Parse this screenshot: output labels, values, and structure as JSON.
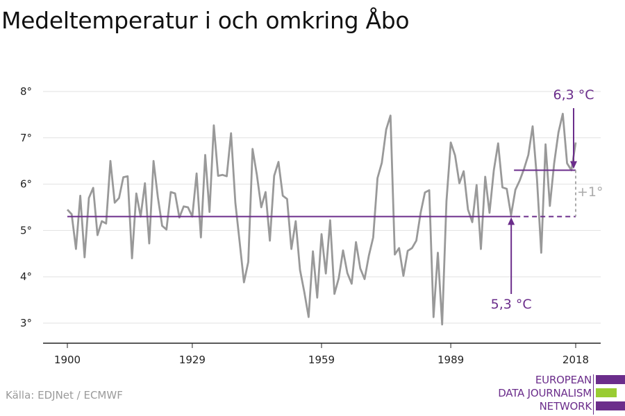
{
  "title": "Medeltemperatur i och omkring Åbo",
  "source": "Källa: EDJNet / ECMWF",
  "logo": {
    "lines": [
      "EUROPEAN",
      "DATA JOURNALISM",
      "NETWORK"
    ],
    "bar_colors": [
      "#6b2d8b",
      "#99cc33",
      "#6b2d8b"
    ]
  },
  "colors": {
    "series": "#999999",
    "accent": "#6b2d8b",
    "grid": "#e1e1e1",
    "diff": "#aaaaaa"
  },
  "chart_data": {
    "type": "line",
    "title": "Medeltemperatur i och omkring Åbo",
    "xlabel": "",
    "ylabel": "",
    "xlim": [
      1900,
      2018
    ],
    "ylim": [
      3,
      8
    ],
    "x_ticks": [
      1900,
      1929,
      1959,
      1989,
      2018
    ],
    "x_tick_labels": [
      "1900",
      "1929",
      "1959",
      "1989",
      "2018"
    ],
    "y_ticks": [
      3,
      4,
      5,
      6,
      7,
      8
    ],
    "y_tick_labels": [
      "3°",
      "4°",
      "5°",
      "6°",
      "7°",
      "8°"
    ],
    "grid": true,
    "series": [
      {
        "name": "",
        "x": [
          1900,
          1901,
          1902,
          1903,
          1904,
          1905,
          1906,
          1907,
          1908,
          1909,
          1910,
          1911,
          1912,
          1913,
          1914,
          1915,
          1916,
          1917,
          1918,
          1919,
          1920,
          1921,
          1922,
          1923,
          1924,
          1925,
          1926,
          1927,
          1928,
          1929,
          1930,
          1931,
          1932,
          1933,
          1934,
          1935,
          1936,
          1937,
          1938,
          1939,
          1940,
          1941,
          1942,
          1943,
          1944,
          1945,
          1946,
          1947,
          1948,
          1949,
          1950,
          1951,
          1952,
          1953,
          1954,
          1955,
          1956,
          1957,
          1958,
          1959,
          1960,
          1961,
          1962,
          1963,
          1964,
          1965,
          1966,
          1967,
          1968,
          1969,
          1970,
          1971,
          1972,
          1973,
          1974,
          1975,
          1976,
          1977,
          1978,
          1979,
          1980,
          1981,
          1982,
          1983,
          1984,
          1985,
          1986,
          1987,
          1988,
          1989,
          1990,
          1991,
          1992,
          1993,
          1994,
          1995,
          1996,
          1997,
          1998,
          1999,
          2000,
          2001,
          2002,
          2003,
          2004,
          2005,
          2006,
          2007,
          2008,
          2009,
          2010,
          2011,
          2012,
          2013,
          2014,
          2015,
          2016,
          2017,
          2018
        ],
        "values": [
          5.45,
          5.35,
          4.6,
          5.75,
          4.42,
          5.7,
          5.92,
          4.9,
          5.2,
          5.15,
          6.5,
          5.6,
          5.7,
          6.15,
          6.17,
          4.4,
          5.8,
          5.3,
          6.02,
          4.72,
          6.5,
          5.72,
          5.1,
          5.02,
          5.83,
          5.8,
          5.28,
          5.52,
          5.5,
          5.3,
          6.23,
          4.85,
          6.63,
          5.4,
          7.27,
          6.18,
          6.2,
          6.17,
          7.1,
          5.6,
          4.75,
          3.88,
          4.32,
          6.76,
          6.2,
          5.5,
          5.83,
          4.78,
          6.18,
          6.48,
          5.75,
          5.68,
          4.6,
          5.2,
          4.15,
          3.67,
          3.13,
          4.55,
          3.55,
          4.92,
          4.07,
          5.22,
          3.63,
          3.97,
          4.57,
          4.08,
          3.85,
          4.75,
          4.18,
          3.95,
          4.46,
          4.85,
          6.13,
          6.46,
          7.18,
          7.48,
          4.48,
          4.62,
          4.02,
          4.56,
          4.62,
          4.78,
          5.38,
          5.82,
          5.87,
          3.13,
          4.52,
          2.97,
          5.63,
          6.9,
          6.62,
          6.02,
          6.28,
          5.45,
          5.18,
          5.98,
          4.6,
          6.16,
          5.38,
          6.3,
          6.88,
          5.93,
          5.9,
          5.33,
          5.88,
          6.08,
          6.33,
          6.63,
          7.25,
          6.12,
          4.52,
          6.86,
          5.53,
          6.45,
          7.12,
          7.52,
          6.45,
          6.3,
          6.9
        ]
      }
    ],
    "annotations": [
      {
        "label": "5,3 °C",
        "value": 5.3,
        "from": 1900,
        "to": 2004,
        "note": "baseline"
      },
      {
        "label": "6,3 °C",
        "value": 6.3,
        "from": 2004,
        "to": 2018,
        "note": "recent"
      },
      {
        "label": "+1°"
      }
    ]
  }
}
